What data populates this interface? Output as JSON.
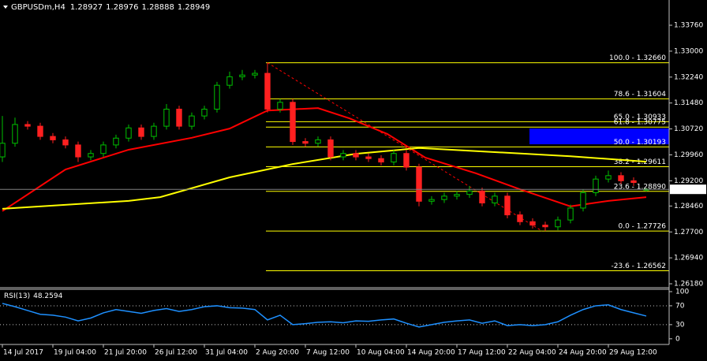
{
  "chart_data": {
    "type": "candlestick",
    "symbol": "GBPUSDm,H4",
    "quote": [
      1.28927,
      1.28976,
      1.28888,
      1.28949
    ],
    "x": [
      0,
      4,
      8,
      12,
      16,
      20,
      24,
      28,
      32,
      36,
      40,
      44,
      48,
      52,
      56,
      60,
      64,
      68,
      72,
      76,
      80,
      84,
      88,
      92,
      96,
      100,
      104,
      108,
      112,
      116,
      120,
      124,
      128,
      132,
      136,
      140,
      144,
      148,
      152,
      156,
      160,
      164,
      168,
      172,
      176,
      180,
      184,
      188,
      192,
      196,
      200,
      204
    ],
    "open": [
      1.299,
      1.303,
      1.3085,
      1.308,
      1.305,
      1.304,
      1.3025,
      1.299,
      1.3,
      1.3025,
      1.3045,
      1.3075,
      1.305,
      1.308,
      1.313,
      1.308,
      1.311,
      1.313,
      1.32,
      1.3225,
      1.323,
      1.3235,
      1.313,
      1.315,
      1.3035,
      1.303,
      1.304,
      1.299,
      1.3,
      1.299,
      1.2985,
      1.2975,
      1.3,
      1.296,
      1.286,
      1.2865,
      1.2875,
      1.288,
      1.289,
      1.2855,
      1.2875,
      1.282,
      1.28,
      1.279,
      1.2785,
      1.2805,
      1.284,
      1.2885,
      1.2925,
      1.2935,
      1.292,
      1.28927
    ],
    "high": [
      1.311,
      1.3105,
      1.3095,
      1.309,
      1.306,
      1.305,
      1.3035,
      1.301,
      1.3035,
      1.3055,
      1.3085,
      1.3085,
      1.309,
      1.3145,
      1.314,
      1.312,
      1.314,
      1.321,
      1.324,
      1.3245,
      1.3245,
      1.3266,
      1.316,
      1.316,
      1.3045,
      1.305,
      1.305,
      1.301,
      1.301,
      1.3,
      1.2995,
      1.301,
      1.301,
      1.297,
      1.2875,
      1.2885,
      1.289,
      1.2905,
      1.29,
      1.2885,
      1.2885,
      1.283,
      1.281,
      1.28,
      1.2815,
      1.285,
      1.2895,
      1.2935,
      1.295,
      1.2945,
      1.293,
      1.28976
    ],
    "low": [
      1.2975,
      1.302,
      1.307,
      1.304,
      1.303,
      1.3015,
      1.2975,
      1.298,
      1.299,
      1.3015,
      1.3035,
      1.304,
      1.304,
      1.307,
      1.307,
      1.307,
      1.31,
      1.312,
      1.319,
      1.3215,
      1.322,
      1.312,
      1.312,
      1.3025,
      1.302,
      1.302,
      1.298,
      1.298,
      1.298,
      1.2975,
      1.2965,
      1.2965,
      1.295,
      1.2845,
      1.285,
      1.2855,
      1.2865,
      1.287,
      1.2845,
      1.2845,
      1.281,
      1.279,
      1.278,
      1.27726,
      1.2775,
      1.2795,
      1.283,
      1.2875,
      1.2915,
      1.291,
      1.2905,
      1.28888
    ],
    "close": [
      1.303,
      1.3085,
      1.308,
      1.305,
      1.304,
      1.3025,
      1.299,
      1.3,
      1.3025,
      1.3045,
      1.3075,
      1.305,
      1.308,
      1.313,
      1.308,
      1.311,
      1.313,
      1.32,
      1.3225,
      1.323,
      1.3235,
      1.313,
      1.315,
      1.3035,
      1.303,
      1.304,
      1.299,
      1.3,
      1.299,
      1.2985,
      1.2975,
      1.3,
      1.296,
      1.286,
      1.2865,
      1.2875,
      1.288,
      1.289,
      1.2855,
      1.2875,
      1.282,
      1.28,
      1.279,
      1.2785,
      1.2805,
      1.284,
      1.2885,
      1.2925,
      1.2935,
      1.292,
      1.2915,
      1.28949
    ],
    "up_color": "#00c000",
    "down_color": "#ff2020",
    "xlim": [
      -0.75,
      211.25
    ],
    "ylim": [
      1.26065,
      1.345
    ],
    "yticks": [
      {
        "value": 1.3376,
        "label": "1.33760"
      },
      {
        "value": 1.33,
        "label": "1.33000"
      },
      {
        "value": 1.3224,
        "label": "1.32240"
      },
      {
        "value": 1.3148,
        "label": "1.31480"
      },
      {
        "value": 1.3072,
        "label": "1.30720"
      },
      {
        "value": 1.2996,
        "label": "1.29960"
      },
      {
        "value": 1.292,
        "label": "1.29200"
      },
      {
        "value": 1.2846,
        "label": "1.28460"
      },
      {
        "value": 1.277,
        "label": "1.27700"
      },
      {
        "value": 1.2694,
        "label": "1.26940"
      },
      {
        "value": 1.2618,
        "label": "1.26180"
      }
    ],
    "xticks": [
      {
        "value": 0,
        "label": "14 Jul 2017"
      },
      {
        "value": 16,
        "label": "19 Jul 04:00"
      },
      {
        "value": 32,
        "label": "21 Jul 20:00"
      },
      {
        "value": 48,
        "label": "26 Jul 12:00"
      },
      {
        "value": 64,
        "label": "31 Jul 04:00"
      },
      {
        "value": 80,
        "label": "2 Aug 20:00"
      },
      {
        "value": 96,
        "label": "7 Aug 12:00"
      },
      {
        "value": 112,
        "label": "10 Aug 04:00"
      },
      {
        "value": 128,
        "label": "14 Aug 20:00"
      },
      {
        "value": 144,
        "label": "17 Aug 12:00"
      },
      {
        "value": 160,
        "label": "22 Aug 04:00"
      },
      {
        "value": 176,
        "label": "24 Aug 20:00"
      },
      {
        "value": 192,
        "label": "29 Aug 12:00"
      }
    ],
    "moving_averages": [
      {
        "color": "#ff0000",
        "x": [
          0,
          20,
          40,
          60,
          72,
          84,
          100,
          110,
          122,
          134,
          150,
          164,
          180,
          192,
          204
        ],
        "values": [
          1.2831,
          1.2953,
          1.3011,
          1.3046,
          1.3073,
          1.3126,
          1.3133,
          1.3103,
          1.3057,
          1.2988,
          1.2942,
          1.2895,
          1.2845,
          1.2861,
          1.2872
        ]
      },
      {
        "color": "#ffff00",
        "x": [
          0,
          40,
          50,
          72,
          92,
          112,
          132,
          152,
          180,
          204
        ],
        "values": [
          1.2838,
          1.2861,
          1.2872,
          1.293,
          1.2969,
          1.2999,
          1.3016,
          1.3006,
          1.2992,
          1.2976
        ]
      }
    ],
    "fibonacci": {
      "color": "#ffff00",
      "x_start": 83.5,
      "levels": [
        {
          "value": 1.3266,
          "label": "100.0 - 1.32660"
        },
        {
          "value": 1.31604,
          "label": "78.6 - 1.31604"
        },
        {
          "value": 1.30933,
          "label": "65.0 - 1.30933"
        },
        {
          "value": 1.30775,
          "label": "61.8 - 1.30775"
        },
        {
          "value": 1.30193,
          "label": "50.0 - 1.30193"
        },
        {
          "value": 1.29611,
          "label": "38.2 - 1.29611"
        },
        {
          "value": 1.2889,
          "label": "23.6 - 1.28890"
        },
        {
          "value": 1.27726,
          "label": "0.0 - 1.27726"
        },
        {
          "value": 1.26562,
          "label": "-23.6 - 1.26562"
        }
      ]
    },
    "trendline": {
      "color": "#ff0000",
      "x": [
        84,
        171
      ],
      "values": [
        1.3266,
        1.27726
      ]
    },
    "zone": {
      "color": "#0000ff",
      "x_start": 167,
      "values": [
        1.3027,
        1.3073
      ]
    },
    "rsi": {
      "name": "RSI(13)",
      "last": 48.2594,
      "color": "#1e90ff",
      "x": [
        0,
        4,
        8,
        12,
        16,
        20,
        24,
        28,
        32,
        36,
        40,
        44,
        48,
        52,
        56,
        60,
        64,
        68,
        72,
        76,
        80,
        84,
        88,
        92,
        96,
        100,
        104,
        108,
        112,
        116,
        120,
        124,
        128,
        132,
        136,
        140,
        144,
        148,
        152,
        156,
        160,
        164,
        168,
        172,
        176,
        180,
        184,
        188,
        192,
        196,
        200,
        204
      ],
      "values": [
        75,
        68,
        60,
        52,
        50,
        46,
        38,
        44,
        55,
        62,
        58,
        54,
        60,
        64,
        58,
        62,
        68,
        70,
        66,
        65,
        62,
        40,
        50,
        30,
        32,
        35,
        36,
        34,
        38,
        37,
        40,
        42,
        33,
        25,
        30,
        35,
        38,
        40,
        33,
        38,
        28,
        30,
        28,
        30,
        36,
        50,
        62,
        70,
        72,
        62,
        55,
        48.2594
      ],
      "ylim": [
        -12,
        105
      ],
      "yticks": [
        100,
        70,
        30,
        0
      ],
      "levels": [
        70,
        30
      ]
    }
  }
}
